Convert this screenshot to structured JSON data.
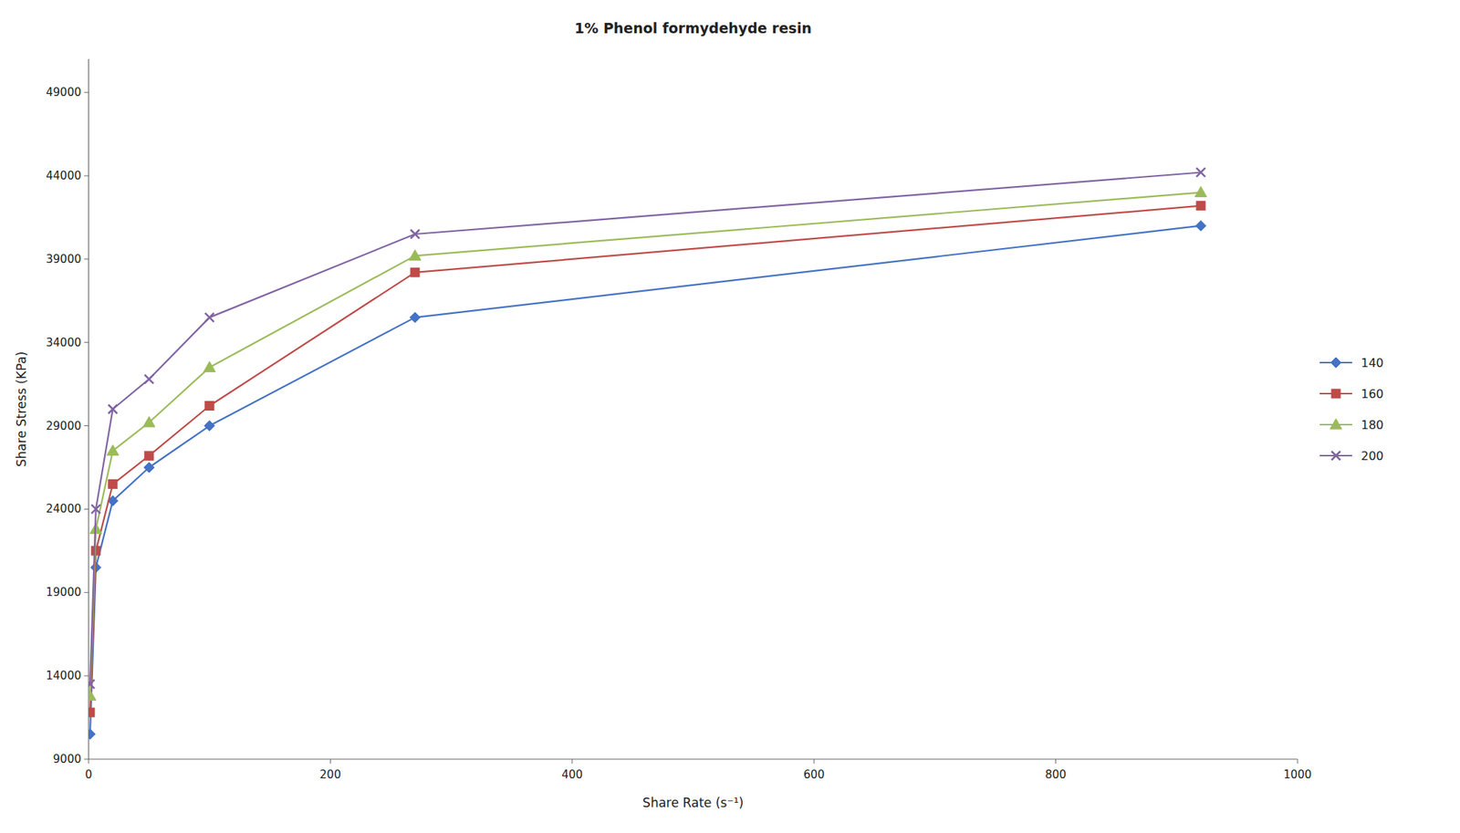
{
  "chart_data": {
    "type": "line",
    "title": "1% Phenol formydehyde resin",
    "xlabel": "Share Rate (s⁻¹)",
    "ylabel": "Share Stress (KPa)",
    "x": [
      1.2,
      6,
      20,
      50,
      100,
      270,
      920
    ],
    "series": [
      {
        "name": "140",
        "color": "#4472C4",
        "marker": "diamond",
        "values": [
          10500,
          20500,
          24500,
          26500,
          29000,
          35500,
          41000
        ]
      },
      {
        "name": "160",
        "color": "#BE4B48",
        "marker": "square",
        "values": [
          11800,
          21500,
          25500,
          27200,
          30200,
          38200,
          42200
        ]
      },
      {
        "name": "180",
        "color": "#9BBB59",
        "marker": "triangle",
        "values": [
          12800,
          22800,
          27500,
          29200,
          32500,
          39200,
          43000
        ]
      },
      {
        "name": "200",
        "color": "#8064A2",
        "marker": "x",
        "values": [
          13500,
          24000,
          30000,
          31800,
          35500,
          40500,
          44200
        ]
      }
    ],
    "xlim": [
      0,
      1000
    ],
    "ylim": [
      9000,
      51000
    ],
    "xticks": [
      0,
      200,
      400,
      600,
      800,
      1000
    ],
    "yticks": [
      9000,
      14000,
      19000,
      24000,
      29000,
      34000,
      39000,
      44000,
      49000
    ],
    "grid": false,
    "legend": "right"
  }
}
